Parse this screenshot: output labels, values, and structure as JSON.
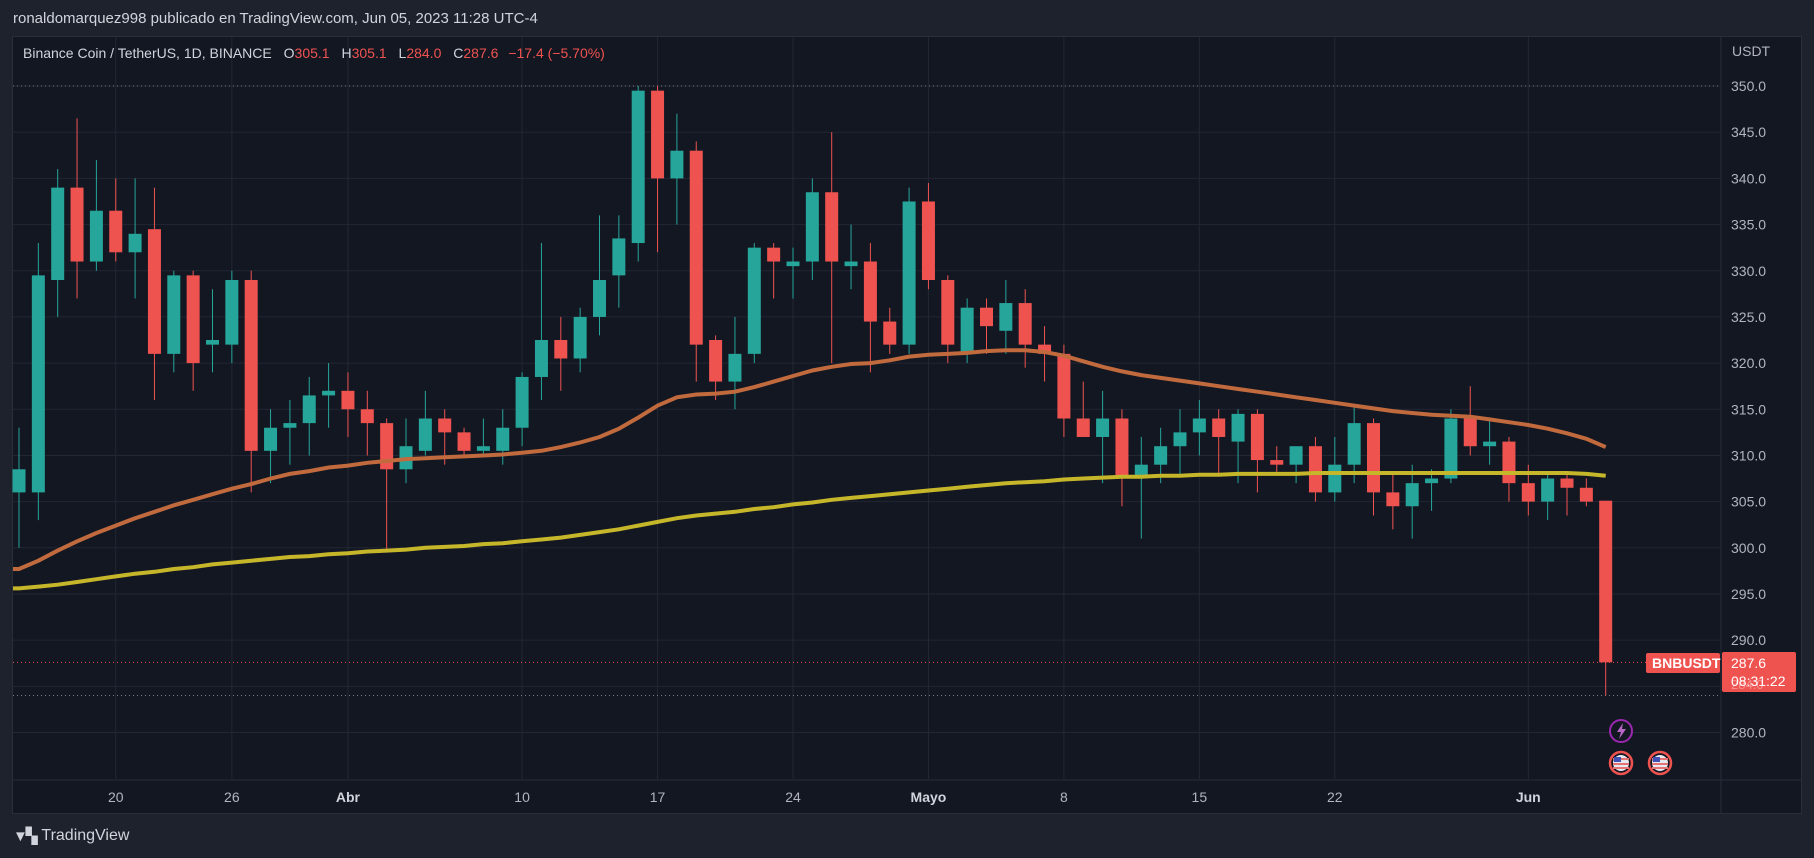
{
  "header": {
    "caption": "ronaldomarquez998 publicado en TradingView.com, Jun 05, 2023 11:28 UTC-4"
  },
  "legend": {
    "pair": "Binance Coin / TetherUS, 1D, BINANCE",
    "o_label": "O",
    "o_value": "305.1",
    "h_label": "H",
    "h_value": "305.1",
    "l_label": "L",
    "l_value": "284.0",
    "c_label": "C",
    "c_value": "287.6",
    "change": "−17.4 (−5.70%)"
  },
  "footer": {
    "logo_text": "TradingView"
  },
  "colors": {
    "up": "#26a69a",
    "down": "#ef5350",
    "ma_short": "#c06a3e",
    "ma_long": "#c6b62a",
    "background": "#131722",
    "grid": "#232733"
  },
  "icons": [
    "lightning-event-icon",
    "us-flag-event-icon",
    "us-flag-event-icon"
  ],
  "chart_data": {
    "type": "candlestick",
    "currency_label": "USDT",
    "ylim": [
      275,
      352
    ],
    "y_ticks": [
      "280.0",
      "285.0",
      "290.0",
      "295.0",
      "300.0",
      "305.0",
      "310.0",
      "315.0",
      "320.0",
      "325.0",
      "330.0",
      "335.0",
      "340.0",
      "345.0",
      "350.0"
    ],
    "x_ticks": [
      {
        "label": "20",
        "index": 5,
        "bold": false
      },
      {
        "label": "26",
        "index": 11,
        "bold": false
      },
      {
        "label": "Abr",
        "index": 17,
        "bold": true
      },
      {
        "label": "10",
        "index": 26,
        "bold": false
      },
      {
        "label": "17",
        "index": 33,
        "bold": false
      },
      {
        "label": "24",
        "index": 40,
        "bold": false
      },
      {
        "label": "Mayo",
        "index": 47,
        "bold": true
      },
      {
        "label": "8",
        "index": 54,
        "bold": false
      },
      {
        "label": "15",
        "index": 61,
        "bold": false
      },
      {
        "label": "22",
        "index": 68,
        "bold": false
      },
      {
        "label": "Jun",
        "index": 78,
        "bold": true
      }
    ],
    "candles": [
      {
        "o": 306,
        "h": 313,
        "l": 300,
        "c": 308.5
      },
      {
        "o": 306,
        "h": 333,
        "l": 303,
        "c": 329.5
      },
      {
        "o": 329,
        "h": 341,
        "l": 325,
        "c": 339
      },
      {
        "o": 339,
        "h": 346.5,
        "l": 327,
        "c": 331
      },
      {
        "o": 331,
        "h": 342,
        "l": 330,
        "c": 336.5
      },
      {
        "o": 336.5,
        "h": 340,
        "l": 331,
        "c": 332
      },
      {
        "o": 332,
        "h": 340,
        "l": 327,
        "c": 334
      },
      {
        "o": 334.5,
        "h": 339,
        "l": 316,
        "c": 321
      },
      {
        "o": 321,
        "h": 330,
        "l": 319,
        "c": 329.5
      },
      {
        "o": 329.5,
        "h": 330,
        "l": 317,
        "c": 320
      },
      {
        "o": 322,
        "h": 328,
        "l": 319,
        "c": 322.5
      },
      {
        "o": 322,
        "h": 330,
        "l": 320,
        "c": 329
      },
      {
        "o": 329,
        "h": 330,
        "l": 306,
        "c": 310.5
      },
      {
        "o": 310.5,
        "h": 315,
        "l": 307,
        "c": 313
      },
      {
        "o": 313,
        "h": 316,
        "l": 309,
        "c": 313.5
      },
      {
        "o": 313.5,
        "h": 318.5,
        "l": 310,
        "c": 316.5
      },
      {
        "o": 316.5,
        "h": 320,
        "l": 313,
        "c": 317
      },
      {
        "o": 317,
        "h": 319,
        "l": 312,
        "c": 315
      },
      {
        "o": 315,
        "h": 317,
        "l": 310,
        "c": 313.5
      },
      {
        "o": 313.5,
        "h": 314,
        "l": 299.5,
        "c": 308.5
      },
      {
        "o": 308.5,
        "h": 314,
        "l": 307,
        "c": 311
      },
      {
        "o": 310.5,
        "h": 317,
        "l": 310,
        "c": 314
      },
      {
        "o": 314,
        "h": 315,
        "l": 309,
        "c": 312.5
      },
      {
        "o": 312.5,
        "h": 313,
        "l": 310,
        "c": 310.5
      },
      {
        "o": 310.5,
        "h": 314,
        "l": 310,
        "c": 311
      },
      {
        "o": 310.5,
        "h": 315,
        "l": 309,
        "c": 313
      },
      {
        "o": 313,
        "h": 319,
        "l": 311,
        "c": 318.5
      },
      {
        "o": 318.5,
        "h": 333,
        "l": 316,
        "c": 322.5
      },
      {
        "o": 322.5,
        "h": 325,
        "l": 317,
        "c": 320.5
      },
      {
        "o": 320.5,
        "h": 326,
        "l": 319,
        "c": 325
      },
      {
        "o": 325,
        "h": 336,
        "l": 323,
        "c": 329
      },
      {
        "o": 329.5,
        "h": 336,
        "l": 326,
        "c": 333.5
      },
      {
        "o": 333,
        "h": 350,
        "l": 331,
        "c": 349.5
      },
      {
        "o": 349.5,
        "h": 350,
        "l": 332,
        "c": 340
      },
      {
        "o": 340,
        "h": 347,
        "l": 335,
        "c": 343
      },
      {
        "o": 343,
        "h": 344,
        "l": 318,
        "c": 322
      },
      {
        "o": 322.5,
        "h": 323,
        "l": 316,
        "c": 318
      },
      {
        "o": 318,
        "h": 325,
        "l": 315,
        "c": 321
      },
      {
        "o": 321,
        "h": 333,
        "l": 320,
        "c": 332.5
      },
      {
        "o": 332.5,
        "h": 333,
        "l": 327,
        "c": 331
      },
      {
        "o": 330.5,
        "h": 332.5,
        "l": 327,
        "c": 331
      },
      {
        "o": 331,
        "h": 340,
        "l": 329,
        "c": 338.5
      },
      {
        "o": 338.5,
        "h": 345,
        "l": 320,
        "c": 331
      },
      {
        "o": 330.5,
        "h": 335,
        "l": 328,
        "c": 331
      },
      {
        "o": 331,
        "h": 333,
        "l": 319,
        "c": 324.5
      },
      {
        "o": 324.5,
        "h": 326,
        "l": 321,
        "c": 322
      },
      {
        "o": 322,
        "h": 339,
        "l": 321,
        "c": 337.5
      },
      {
        "o": 337.5,
        "h": 339.5,
        "l": 328,
        "c": 329
      },
      {
        "o": 329,
        "h": 329.5,
        "l": 320,
        "c": 322
      },
      {
        "o": 321,
        "h": 327,
        "l": 320,
        "c": 326
      },
      {
        "o": 326,
        "h": 327,
        "l": 321,
        "c": 324
      },
      {
        "o": 323.5,
        "h": 329,
        "l": 321,
        "c": 326.5
      },
      {
        "o": 326.5,
        "h": 328,
        "l": 319.5,
        "c": 322
      },
      {
        "o": 322,
        "h": 324,
        "l": 318,
        "c": 321
      },
      {
        "o": 321,
        "h": 322,
        "l": 312,
        "c": 314
      },
      {
        "o": 314,
        "h": 318,
        "l": 312,
        "c": 312
      },
      {
        "o": 312,
        "h": 317,
        "l": 307,
        "c": 314
      },
      {
        "o": 314,
        "h": 315,
        "l": 304.5,
        "c": 307.5
      },
      {
        "o": 307.5,
        "h": 312,
        "l": 301,
        "c": 309
      },
      {
        "o": 309,
        "h": 313,
        "l": 307,
        "c": 311
      },
      {
        "o": 311,
        "h": 315,
        "l": 308,
        "c": 312.5
      },
      {
        "o": 312.5,
        "h": 316,
        "l": 310,
        "c": 314
      },
      {
        "o": 314,
        "h": 315,
        "l": 308,
        "c": 312
      },
      {
        "o": 311.5,
        "h": 315,
        "l": 307,
        "c": 314.5
      },
      {
        "o": 314.5,
        "h": 315,
        "l": 306,
        "c": 309.5
      },
      {
        "o": 309.5,
        "h": 311,
        "l": 308,
        "c": 309
      },
      {
        "o": 309,
        "h": 311,
        "l": 307,
        "c": 311
      },
      {
        "o": 311,
        "h": 312,
        "l": 305,
        "c": 306
      },
      {
        "o": 306,
        "h": 312,
        "l": 305,
        "c": 309
      },
      {
        "o": 309,
        "h": 315.5,
        "l": 307,
        "c": 313.5
      },
      {
        "o": 313.5,
        "h": 314,
        "l": 303.5,
        "c": 306
      },
      {
        "o": 306,
        "h": 308,
        "l": 302,
        "c": 304.5
      },
      {
        "o": 304.5,
        "h": 309,
        "l": 301,
        "c": 307
      },
      {
        "o": 307,
        "h": 308.5,
        "l": 304,
        "c": 307.5
      },
      {
        "o": 307.5,
        "h": 315,
        "l": 307,
        "c": 314
      },
      {
        "o": 314,
        "h": 317.5,
        "l": 310,
        "c": 311
      },
      {
        "o": 311,
        "h": 314,
        "l": 309,
        "c": 311.5
      },
      {
        "o": 311.5,
        "h": 312,
        "l": 305,
        "c": 307
      },
      {
        "o": 307,
        "h": 309,
        "l": 303.5,
        "c": 305
      },
      {
        "o": 305,
        "h": 308,
        "l": 303,
        "c": 307.5
      },
      {
        "o": 307.5,
        "h": 308,
        "l": 303.5,
        "c": 306.5
      },
      {
        "o": 306.5,
        "h": 307.5,
        "l": 304.5,
        "c": 305
      },
      {
        "o": 305.1,
        "h": 305.1,
        "l": 284.0,
        "c": 287.6
      }
    ],
    "ma_short": [
      297.7,
      298.6,
      299.7,
      300.7,
      301.6,
      302.4,
      303.2,
      303.9,
      304.6,
      305.2,
      305.8,
      306.4,
      306.9,
      307.5,
      308.0,
      308.3,
      308.7,
      308.9,
      309.2,
      309.4,
      309.6,
      309.7,
      309.8,
      309.9,
      310.0,
      310.1,
      310.3,
      310.5,
      310.9,
      311.4,
      312.0,
      312.9,
      314.1,
      315.4,
      316.3,
      316.6,
      316.7,
      316.9,
      317.4,
      318.0,
      318.6,
      319.2,
      319.6,
      319.9,
      320.0,
      320.3,
      320.7,
      320.9,
      321.0,
      321.1,
      321.3,
      321.4,
      321.4,
      321.2,
      320.8,
      320.2,
      319.6,
      319.1,
      318.7,
      318.4,
      318.1,
      317.8,
      317.5,
      317.2,
      316.9,
      316.6,
      316.3,
      316.0,
      315.7,
      315.4,
      315.1,
      314.8,
      314.6,
      314.4,
      314.3,
      314.2,
      313.9,
      313.6,
      313.3,
      312.9,
      312.4,
      311.8,
      310.9
    ],
    "ma_long": [
      295.6,
      295.8,
      296.0,
      296.3,
      296.6,
      296.9,
      297.2,
      297.4,
      297.7,
      297.9,
      298.2,
      298.4,
      298.6,
      298.8,
      299.0,
      299.1,
      299.3,
      299.4,
      299.6,
      299.7,
      299.8,
      300.0,
      300.1,
      300.2,
      300.4,
      300.5,
      300.7,
      300.9,
      301.1,
      301.4,
      301.7,
      302.0,
      302.4,
      302.8,
      303.2,
      303.5,
      303.7,
      303.9,
      304.2,
      304.4,
      304.7,
      304.9,
      305.2,
      305.4,
      305.6,
      305.8,
      306.0,
      306.2,
      306.4,
      306.6,
      306.8,
      307.0,
      307.1,
      307.2,
      307.4,
      307.5,
      307.6,
      307.7,
      307.7,
      307.8,
      307.8,
      307.9,
      307.9,
      308.0,
      308.0,
      308.0,
      308.0,
      308.1,
      308.1,
      308.1,
      308.1,
      308.1,
      308.1,
      308.1,
      308.1,
      308.1,
      308.1,
      308.1,
      308.1,
      308.1,
      308.1,
      308.0,
      307.8
    ],
    "last_price": {
      "symbol": "BNBUSDT",
      "value": "287.6",
      "countdown": "08:31:22",
      "hidden_level_label": "284.0"
    },
    "high_line": 350.0,
    "low_line": 284.0
  }
}
